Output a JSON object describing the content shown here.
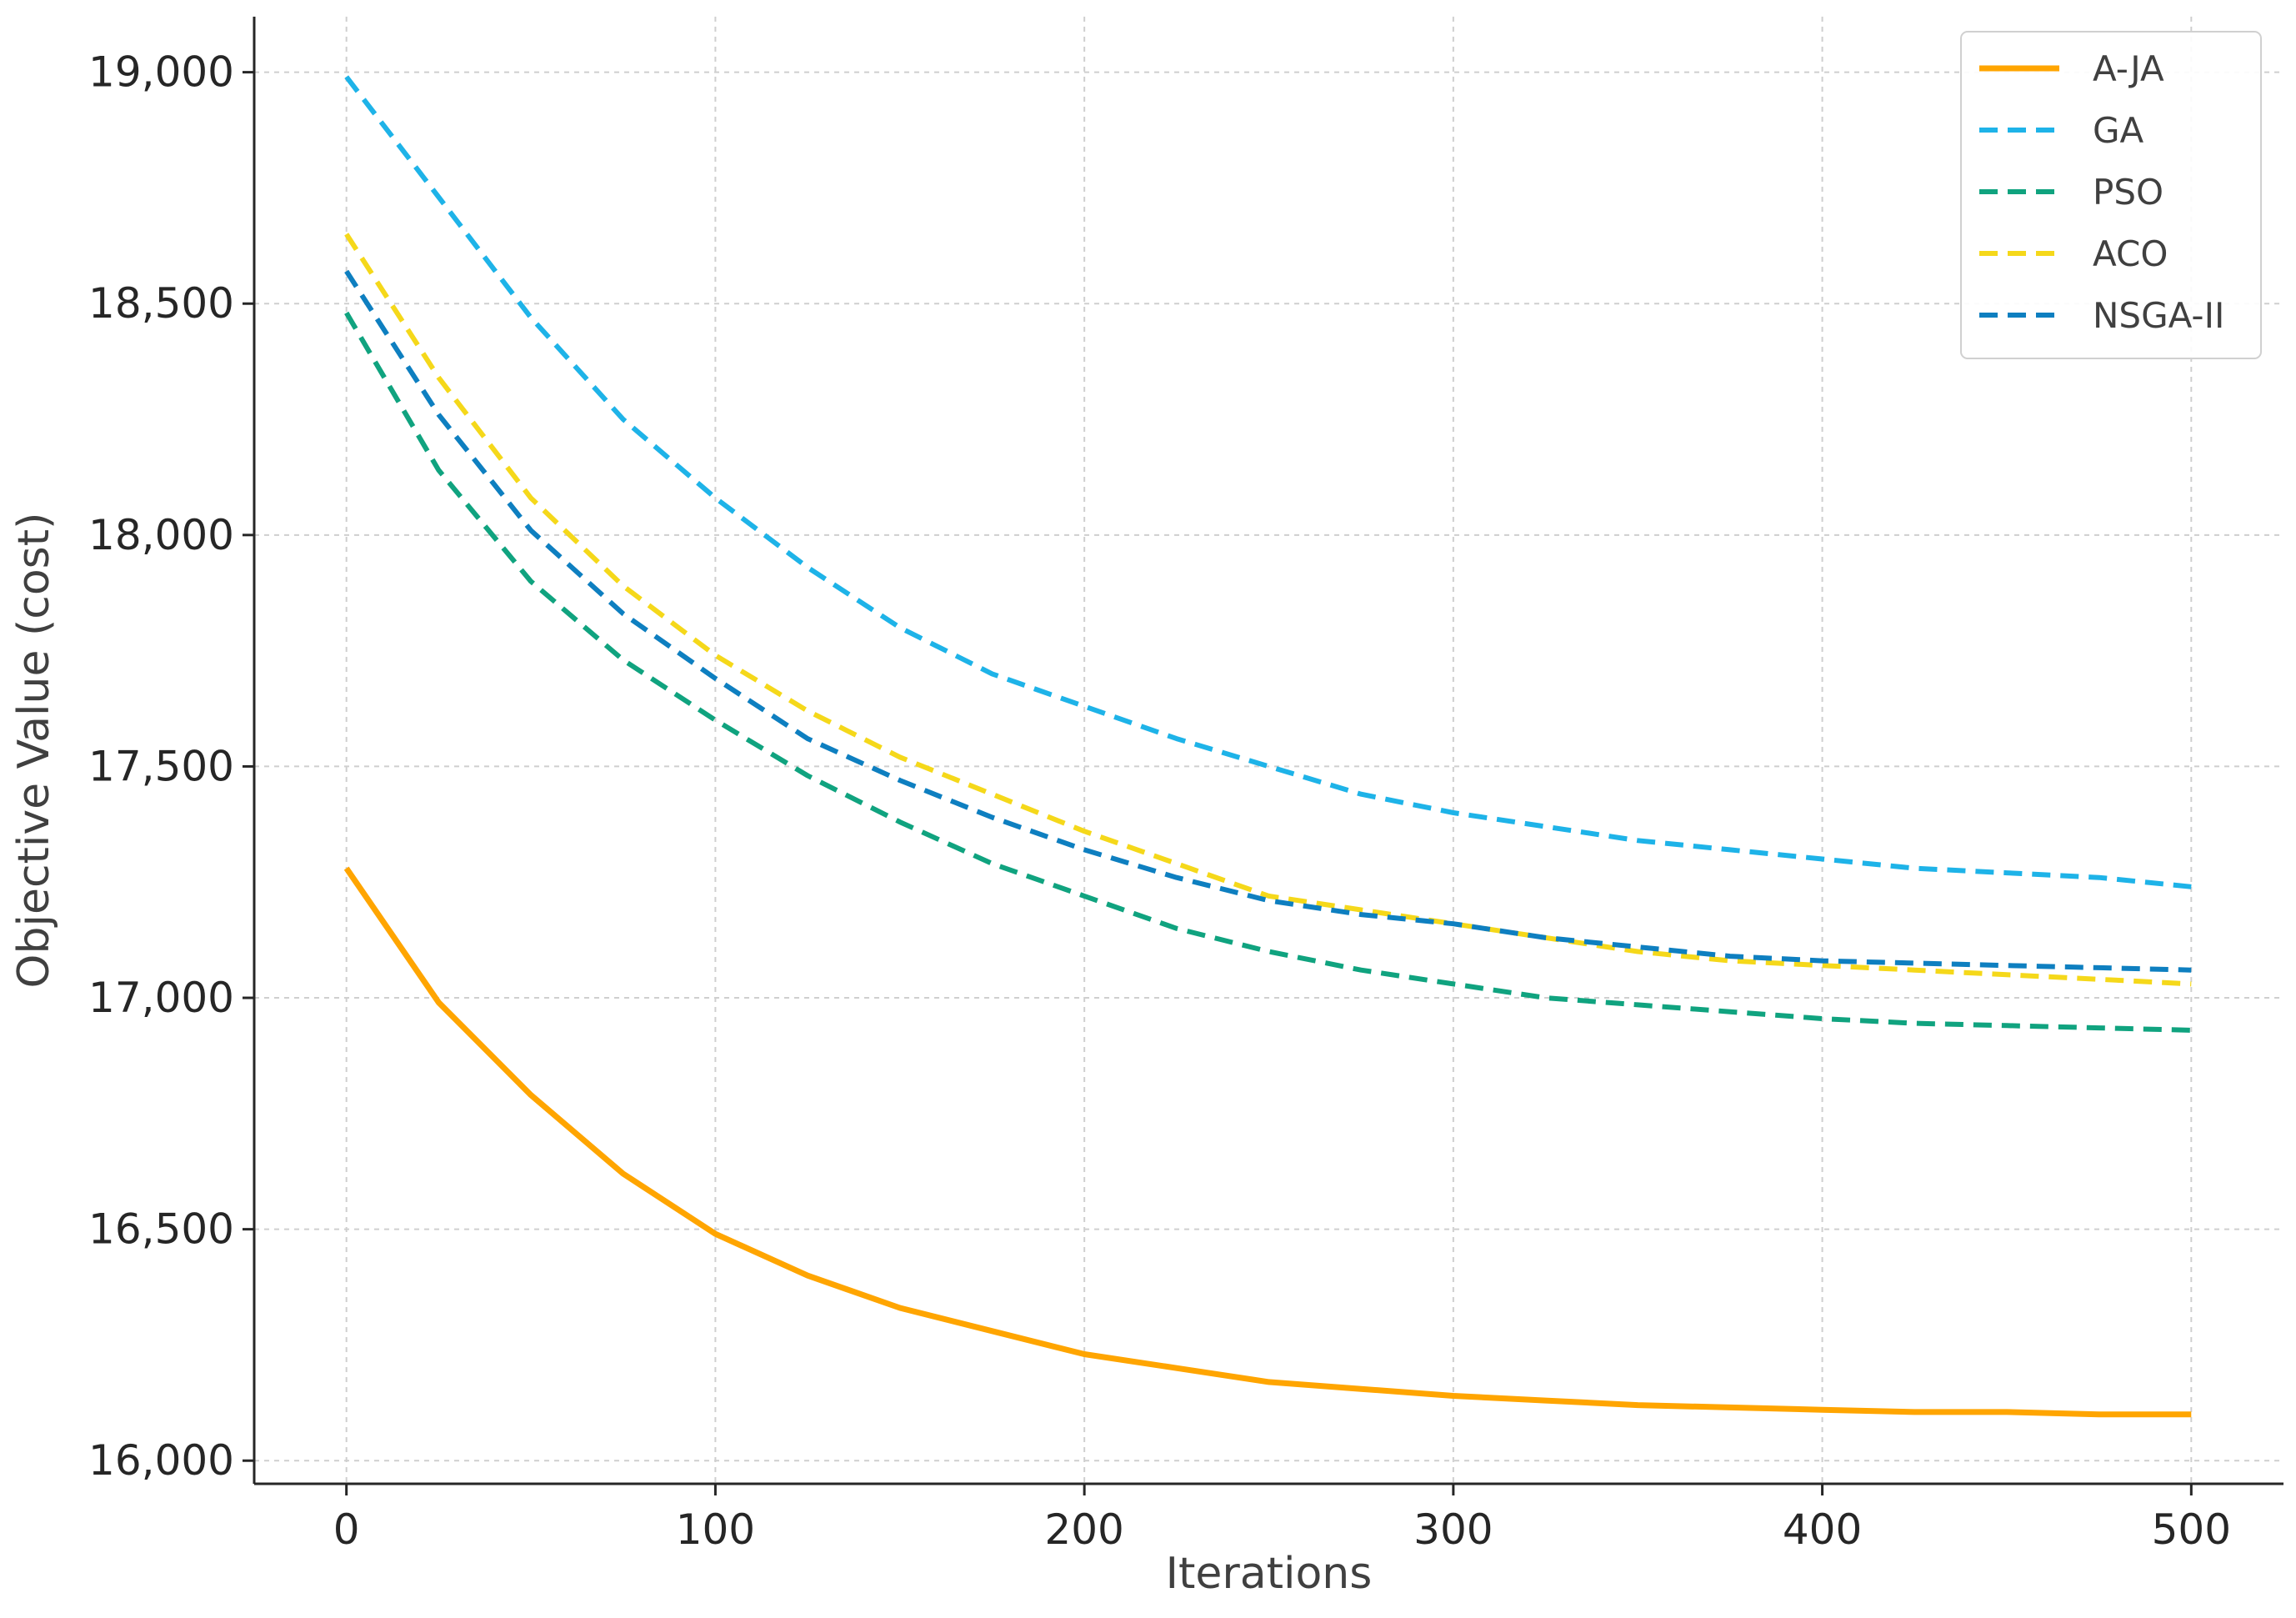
{
  "chart_data": {
    "type": "line",
    "xlabel": "Iterations",
    "ylabel": "Objective Value (cost)",
    "xlim": [
      -25,
      525
    ],
    "ylim": [
      15950,
      19120
    ],
    "xticks": [
      0,
      100,
      200,
      300,
      400,
      500
    ],
    "xtick_labels": [
      "0",
      "100",
      "200",
      "300",
      "400",
      "500"
    ],
    "yticks": [
      16000,
      16500,
      17000,
      17500,
      18000,
      18500,
      19000
    ],
    "ytick_labels": [
      "16,000",
      "16,500",
      "17,000",
      "17,500",
      "18,000",
      "18,500",
      "19,000"
    ],
    "grid": true,
    "legend_position": "top-right",
    "x": [
      0,
      25,
      50,
      75,
      100,
      125,
      150,
      175,
      200,
      225,
      250,
      275,
      300,
      325,
      350,
      375,
      400,
      425,
      450,
      475,
      500
    ],
    "series": [
      {
        "name": "A-JA",
        "color": "#FFA500",
        "style": "solid",
        "values": [
          17280,
          16990,
          16790,
          16620,
          16490,
          16400,
          16330,
          16280,
          16230,
          16200,
          16170,
          16155,
          16140,
          16130,
          16120,
          16115,
          16110,
          16105,
          16105,
          16100,
          16100
        ]
      },
      {
        "name": "GA",
        "color": "#1EB3E8",
        "style": "dashed",
        "values": [
          18990,
          18730,
          18470,
          18250,
          18080,
          17930,
          17800,
          17700,
          17630,
          17560,
          17500,
          17440,
          17400,
          17370,
          17340,
          17320,
          17300,
          17280,
          17270,
          17260,
          17240
        ]
      },
      {
        "name": "PSO",
        "color": "#10A37F",
        "style": "dashed",
        "values": [
          18480,
          18140,
          17900,
          17730,
          17600,
          17480,
          17380,
          17290,
          17220,
          17150,
          17100,
          17060,
          17030,
          17000,
          16985,
          16970,
          16955,
          16945,
          16940,
          16935,
          16930
        ]
      },
      {
        "name": "ACO",
        "color": "#F5D81A",
        "style": "dashed",
        "values": [
          18650,
          18340,
          18080,
          17890,
          17740,
          17620,
          17520,
          17440,
          17360,
          17290,
          17220,
          17190,
          17160,
          17130,
          17100,
          17080,
          17070,
          17060,
          17050,
          17040,
          17030
        ]
      },
      {
        "name": "NSGA-II",
        "color": "#0E7FC0",
        "style": "dashed",
        "values": [
          18570,
          18260,
          18010,
          17830,
          17690,
          17560,
          17470,
          17390,
          17320,
          17260,
          17210,
          17180,
          17160,
          17130,
          17110,
          17090,
          17080,
          17075,
          17070,
          17065,
          17060
        ]
      }
    ]
  }
}
